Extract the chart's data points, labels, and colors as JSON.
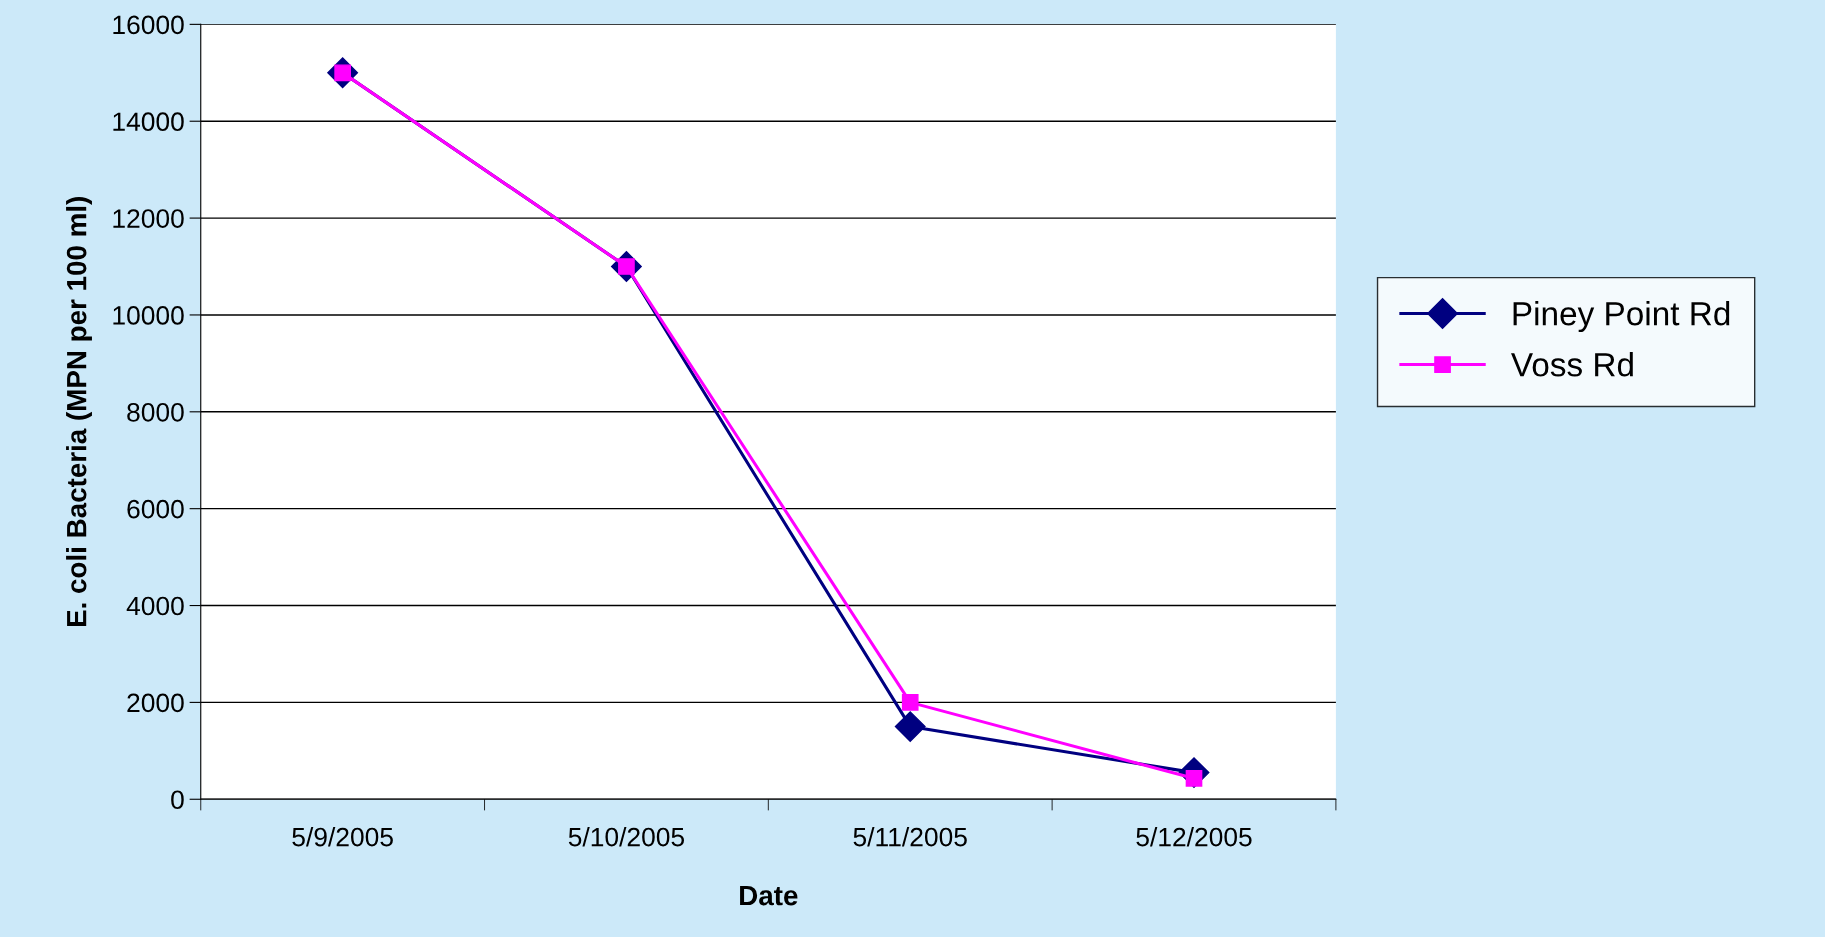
{
  "chart_data": {
    "type": "line",
    "xlabel": "Date",
    "ylabel": "E. coli Bacteria (MPN per 100 ml)",
    "categories": [
      "5/9/2005",
      "5/10/2005",
      "5/11/2005",
      "5/12/2005"
    ],
    "series": [
      {
        "name": "Piney Point Rd",
        "color": "#000080",
        "marker": "diamond",
        "values": [
          15000,
          11000,
          1500,
          550
        ]
      },
      {
        "name": "Voss Rd",
        "color": "#ff00ff",
        "marker": "square",
        "values": [
          15000,
          11000,
          2000,
          430
        ]
      }
    ],
    "ylim": [
      0,
      16000
    ],
    "yticks": [
      0,
      2000,
      4000,
      6000,
      8000,
      10000,
      12000,
      14000,
      16000
    ],
    "grid": "y",
    "legend": "right"
  }
}
